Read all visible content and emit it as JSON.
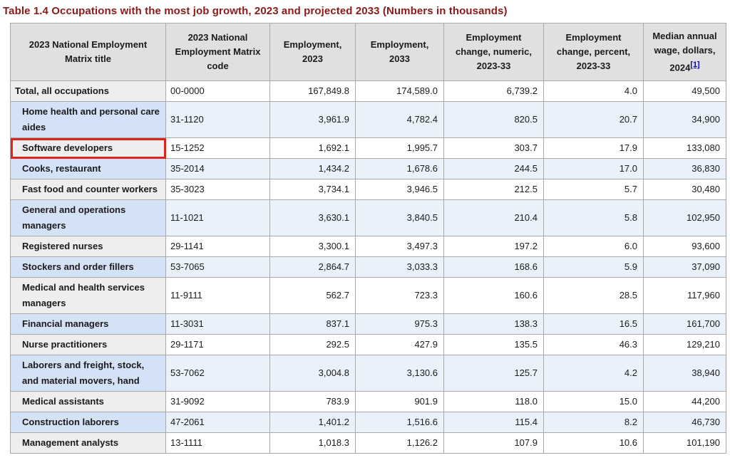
{
  "page_title": "Table 1.4 Occupations with the most job growth, 2023 and projected 2033 (Numbers in thousands)",
  "colors": {
    "title_color": "#8b1a1a",
    "header_bg": "#e0e0e0",
    "row_gray": "#eeeeee",
    "row_blue": "#e9f1fb",
    "row_blue_head": "#d3e2f6",
    "border": "#a9a9a9",
    "outer_border": "#8c8c8c",
    "highlight": "#e0241c",
    "link_blue": "#0000cc",
    "text": "#1b1b1b"
  },
  "table": {
    "columns": [
      {
        "label": "2023 National Employment Matrix title"
      },
      {
        "label": "2023 National Employment Matrix code"
      },
      {
        "label": "Employment, 2023"
      },
      {
        "label": "Employment, 2033"
      },
      {
        "label": "Employment change, numeric, 2023-33"
      },
      {
        "label": "Employment change, percent, 2023-33"
      },
      {
        "label": "Median annual wage, dollars, 2024",
        "footnote": "[1]"
      }
    ],
    "rows": [
      {
        "title": "Total, all occupations",
        "code": "00-0000",
        "employment_2023": "167,849.8",
        "employment_2033": "174,589.0",
        "change_numeric": "6,739.2",
        "change_percent": "4.0",
        "median_wage": "49,500",
        "indent": false,
        "highlighted": false
      },
      {
        "title": "Home health and personal care aides",
        "code": "31-1120",
        "employment_2023": "3,961.9",
        "employment_2033": "4,782.4",
        "change_numeric": "820.5",
        "change_percent": "20.7",
        "median_wage": "34,900",
        "indent": true,
        "highlighted": false
      },
      {
        "title": "Software developers",
        "code": "15-1252",
        "employment_2023": "1,692.1",
        "employment_2033": "1,995.7",
        "change_numeric": "303.7",
        "change_percent": "17.9",
        "median_wage": "133,080",
        "indent": true,
        "highlighted": true
      },
      {
        "title": "Cooks, restaurant",
        "code": "35-2014",
        "employment_2023": "1,434.2",
        "employment_2033": "1,678.6",
        "change_numeric": "244.5",
        "change_percent": "17.0",
        "median_wage": "36,830",
        "indent": true,
        "highlighted": false
      },
      {
        "title": "Fast food and counter workers",
        "code": "35-3023",
        "employment_2023": "3,734.1",
        "employment_2033": "3,946.5",
        "change_numeric": "212.5",
        "change_percent": "5.7",
        "median_wage": "30,480",
        "indent": true,
        "highlighted": false
      },
      {
        "title": "General and operations managers",
        "code": "11-1021",
        "employment_2023": "3,630.1",
        "employment_2033": "3,840.5",
        "change_numeric": "210.4",
        "change_percent": "5.8",
        "median_wage": "102,950",
        "indent": true,
        "highlighted": false
      },
      {
        "title": "Registered nurses",
        "code": "29-1141",
        "employment_2023": "3,300.1",
        "employment_2033": "3,497.3",
        "change_numeric": "197.2",
        "change_percent": "6.0",
        "median_wage": "93,600",
        "indent": true,
        "highlighted": false
      },
      {
        "title": "Stockers and order fillers",
        "code": "53-7065",
        "employment_2023": "2,864.7",
        "employment_2033": "3,033.3",
        "change_numeric": "168.6",
        "change_percent": "5.9",
        "median_wage": "37,090",
        "indent": true,
        "highlighted": false
      },
      {
        "title": "Medical and health services managers",
        "code": "11-9111",
        "employment_2023": "562.7",
        "employment_2033": "723.3",
        "change_numeric": "160.6",
        "change_percent": "28.5",
        "median_wage": "117,960",
        "indent": true,
        "highlighted": false
      },
      {
        "title": "Financial managers",
        "code": "11-3031",
        "employment_2023": "837.1",
        "employment_2033": "975.3",
        "change_numeric": "138.3",
        "change_percent": "16.5",
        "median_wage": "161,700",
        "indent": true,
        "highlighted": false
      },
      {
        "title": "Nurse practitioners",
        "code": "29-1171",
        "employment_2023": "292.5",
        "employment_2033": "427.9",
        "change_numeric": "135.5",
        "change_percent": "46.3",
        "median_wage": "129,210",
        "indent": true,
        "highlighted": false
      },
      {
        "title": "Laborers and freight, stock, and material movers, hand",
        "code": "53-7062",
        "employment_2023": "3,004.8",
        "employment_2033": "3,130.6",
        "change_numeric": "125.7",
        "change_percent": "4.2",
        "median_wage": "38,940",
        "indent": true,
        "highlighted": false
      },
      {
        "title": "Medical assistants",
        "code": "31-9092",
        "employment_2023": "783.9",
        "employment_2033": "901.9",
        "change_numeric": "118.0",
        "change_percent": "15.0",
        "median_wage": "44,200",
        "indent": true,
        "highlighted": false
      },
      {
        "title": "Construction laborers",
        "code": "47-2061",
        "employment_2023": "1,401.2",
        "employment_2033": "1,516.6",
        "change_numeric": "115.4",
        "change_percent": "8.2",
        "median_wage": "46,730",
        "indent": true,
        "highlighted": false
      },
      {
        "title": "Management analysts",
        "code": "13-1111",
        "employment_2023": "1,018.3",
        "employment_2033": "1,126.2",
        "change_numeric": "107.9",
        "change_percent": "10.6",
        "median_wage": "101,190",
        "indent": true,
        "highlighted": false
      }
    ]
  },
  "annotation": {
    "highlighted_occupation": "Software developers"
  }
}
